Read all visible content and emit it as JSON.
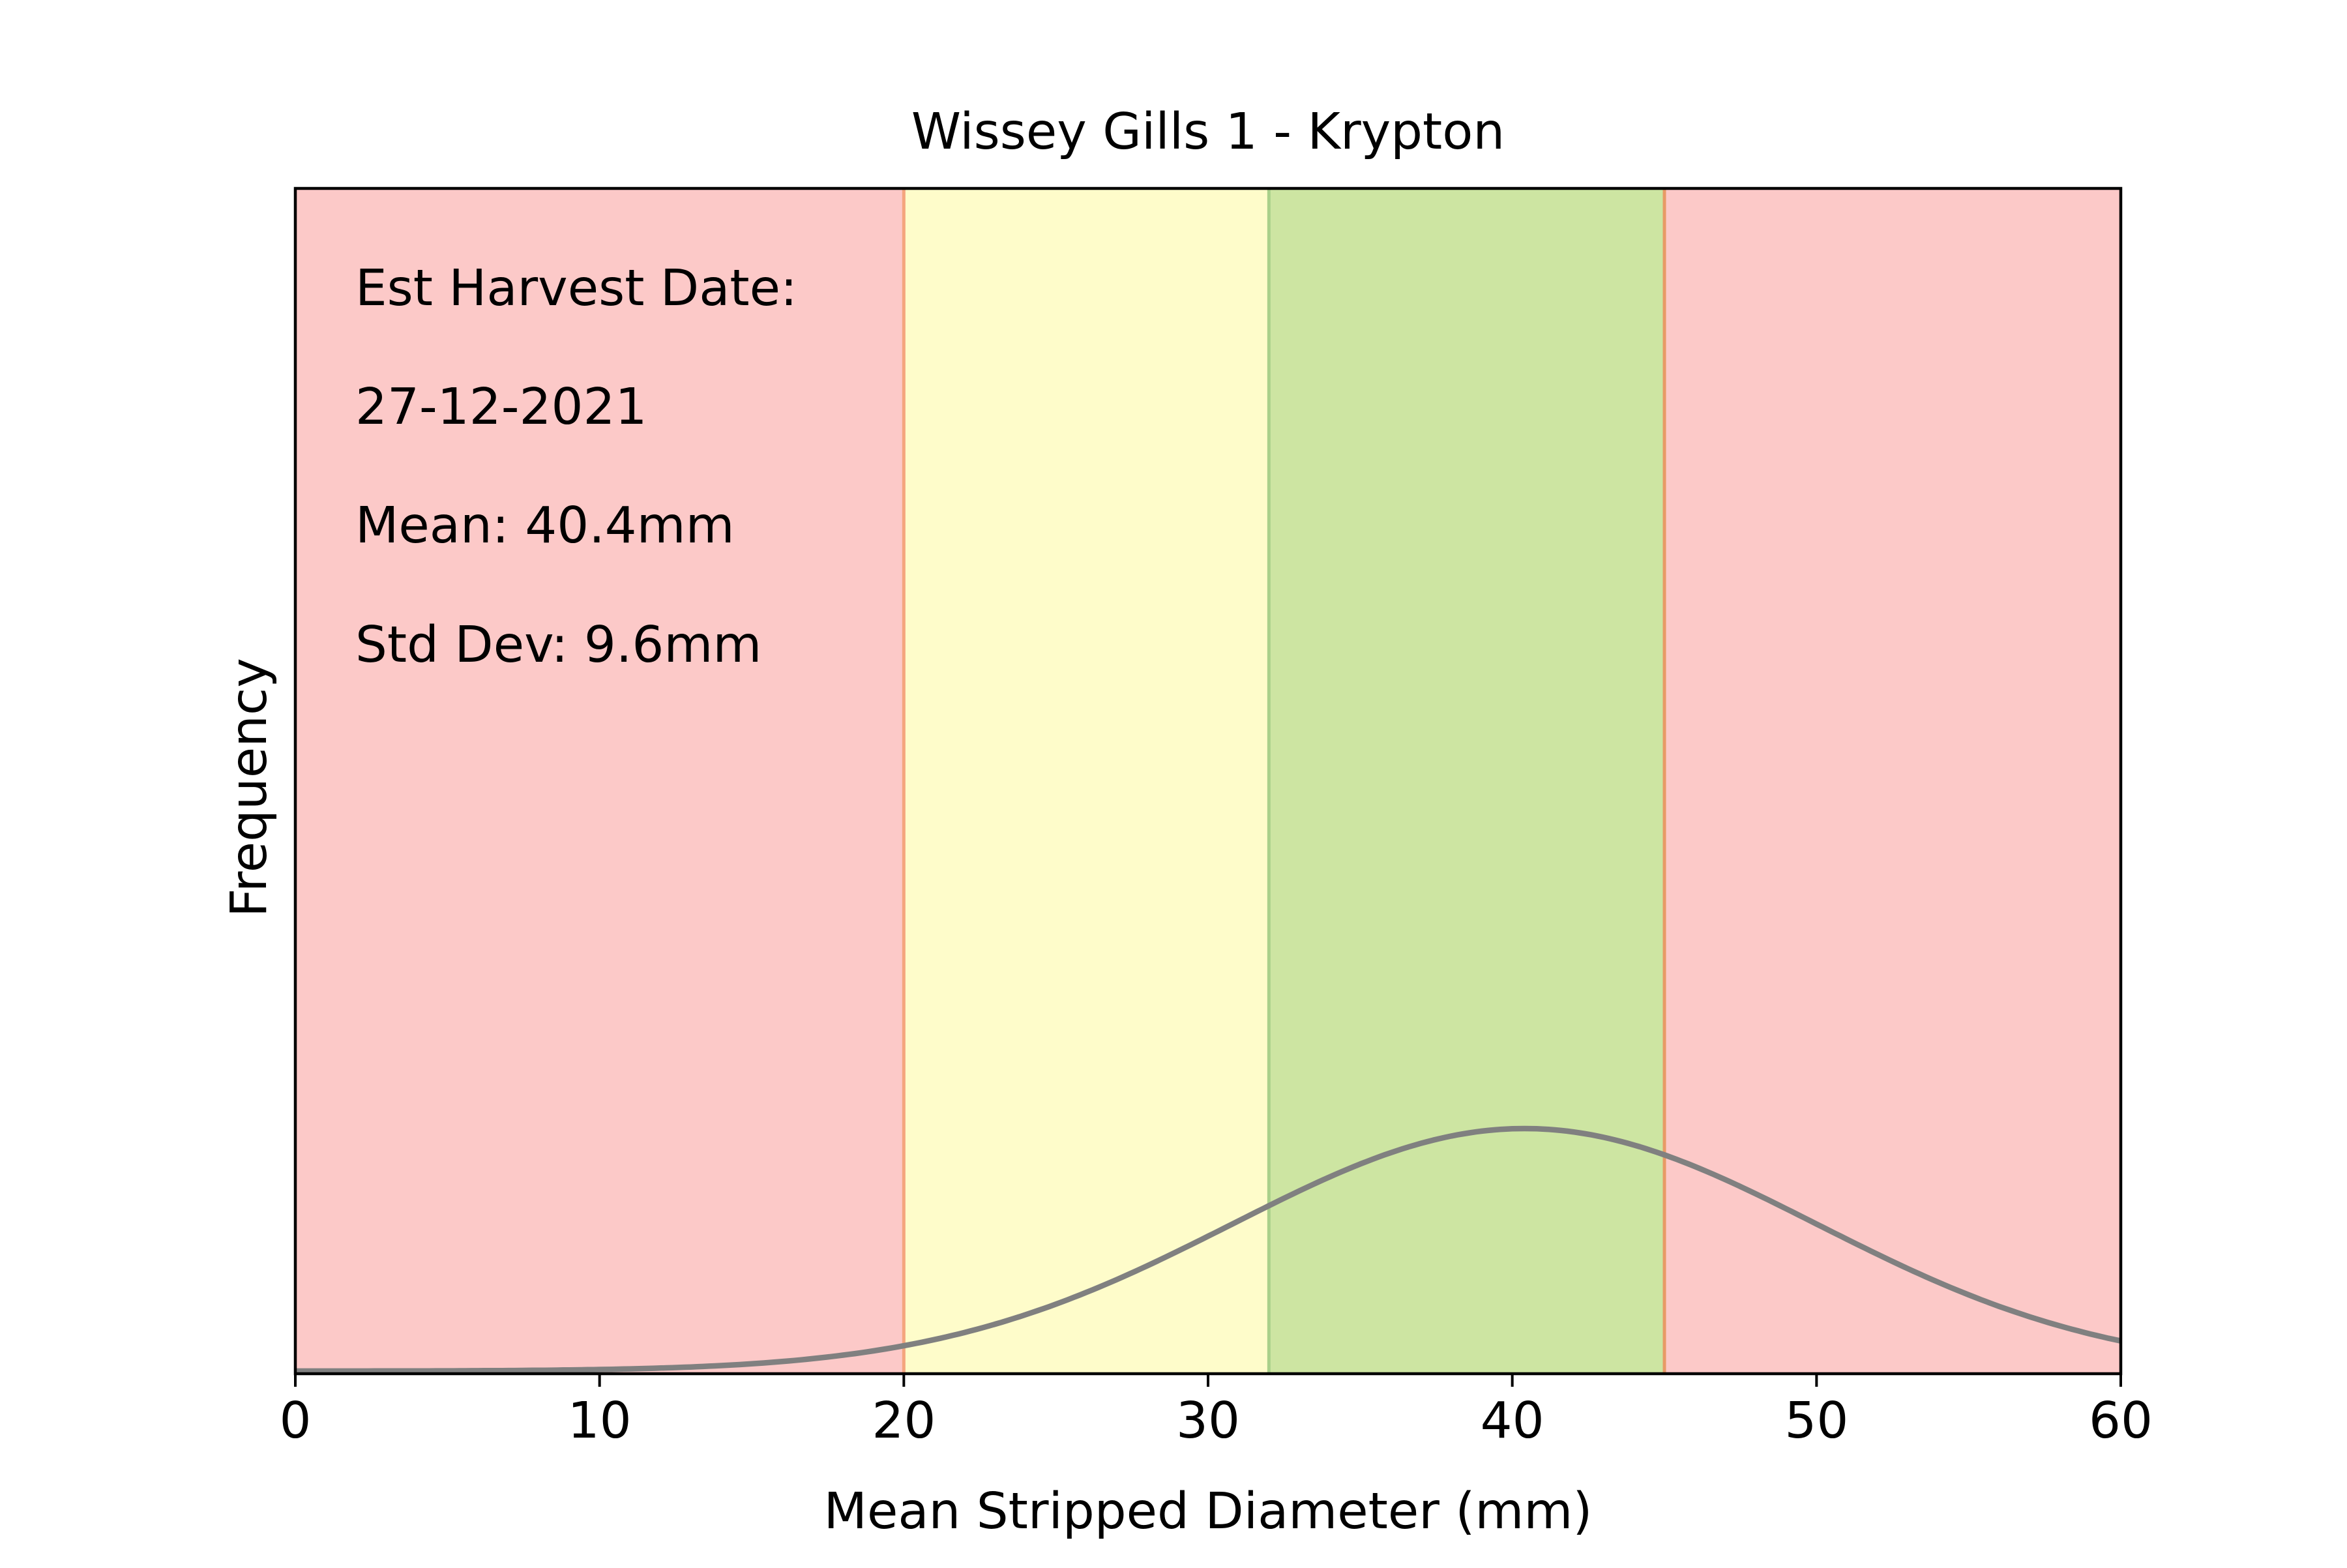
{
  "chart_data": {
    "type": "line",
    "title": "Wissey Gills 1 - Krypton",
    "xlabel": "Mean Stripped Diameter (mm)",
    "ylabel": "Frequency",
    "xlim": [
      0,
      60
    ],
    "x_ticks": [
      0,
      10,
      20,
      30,
      40,
      50,
      60
    ],
    "y_ticks_shown": false,
    "grid": false,
    "annotations": [
      "Est Harvest Date:",
      "27-12-2021",
      "Mean: 40.4mm",
      "Std Dev: 9.6mm"
    ],
    "bands": [
      {
        "from": 0,
        "to": 20,
        "color": "#fcc9c8"
      },
      {
        "from": 20,
        "to": 32,
        "color": "#fefcca"
      },
      {
        "from": 32,
        "to": 45,
        "color": "#cde5a2"
      },
      {
        "from": 45,
        "to": 60,
        "color": "#fcc9c8"
      }
    ],
    "band_edges": [
      {
        "x": 20,
        "color": "#f4a57e"
      },
      {
        "x": 32,
        "color": "#a9d08a"
      },
      {
        "x": 45,
        "color": "#e89a66"
      }
    ],
    "series": [
      {
        "distribution": "normal",
        "mean": 40.4,
        "std_dev": 9.6,
        "color": "#808080"
      }
    ]
  }
}
